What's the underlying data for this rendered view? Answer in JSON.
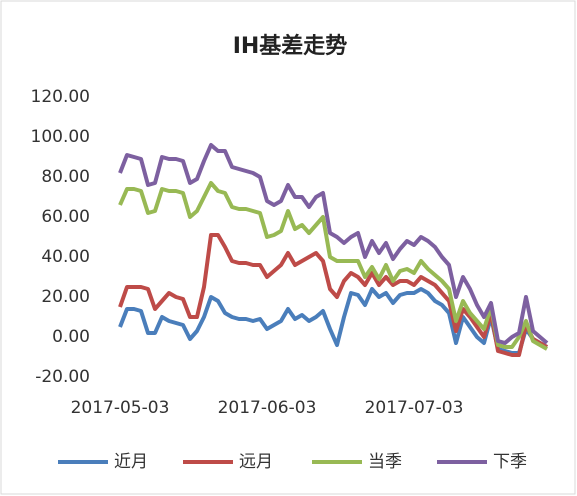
{
  "chart_data": {
    "type": "line",
    "title": "IH基差走势",
    "categories": [
      "2017-05-03",
      null,
      null,
      null,
      null,
      null,
      null,
      null,
      null,
      null,
      null,
      null,
      null,
      null,
      null,
      null,
      null,
      null,
      null,
      null,
      null,
      "2017-06-03",
      null,
      null,
      null,
      null,
      null,
      null,
      null,
      null,
      null,
      null,
      null,
      null,
      null,
      null,
      null,
      null,
      null,
      null,
      null,
      null,
      "2017-07-03",
      null,
      null,
      null,
      null,
      null,
      null,
      null,
      null,
      null,
      null,
      null,
      null,
      null,
      null,
      null,
      null,
      null,
      null,
      null
    ],
    "series": [
      {
        "name": "近月",
        "color": "#4a7ebb",
        "values": [
          5,
          14,
          14,
          13,
          2,
          2,
          10,
          8,
          7,
          6,
          -1,
          3,
          10,
          20,
          18,
          12,
          10,
          9,
          9,
          8,
          9,
          4,
          6,
          8,
          14,
          9,
          11,
          8,
          10,
          13,
          4,
          -4,
          10,
          22,
          21,
          16,
          24,
          20,
          22,
          17,
          21,
          22,
          22,
          24,
          22,
          18,
          16,
          12,
          -3,
          10,
          5,
          0,
          -3,
          10,
          -6,
          -7,
          -8,
          -8,
          4,
          -1,
          -3,
          -5
        ]
      },
      {
        "name": "远月",
        "color": "#be4b48",
        "values": [
          15,
          25,
          25,
          25,
          24,
          14,
          18,
          22,
          20,
          19,
          10,
          10,
          25,
          51,
          51,
          45,
          38,
          37,
          37,
          36,
          36,
          30,
          33,
          36,
          42,
          36,
          38,
          40,
          42,
          38,
          24,
          20,
          28,
          32,
          30,
          26,
          32,
          26,
          30,
          26,
          28,
          28,
          26,
          30,
          28,
          26,
          22,
          18,
          3,
          14,
          10,
          5,
          0,
          12,
          -7,
          -8,
          -9,
          -9,
          6,
          -1,
          -3,
          -5
        ]
      },
      {
        "name": "当季",
        "color": "#98b954",
        "values": [
          66,
          74,
          74,
          73,
          62,
          63,
          74,
          73,
          73,
          72,
          60,
          63,
          70,
          77,
          73,
          72,
          65,
          64,
          64,
          63,
          62,
          50,
          51,
          53,
          63,
          54,
          56,
          52,
          56,
          60,
          40,
          38,
          38,
          38,
          38,
          30,
          35,
          29,
          36,
          28,
          33,
          34,
          32,
          38,
          34,
          31,
          28,
          24,
          8,
          18,
          12,
          8,
          4,
          15,
          -4,
          -5,
          -5,
          0,
          8,
          -2,
          -4,
          -6
        ]
      },
      {
        "name": "下季",
        "color": "#7d60a0",
        "values": [
          82,
          91,
          90,
          89,
          76,
          77,
          90,
          89,
          89,
          88,
          77,
          79,
          88,
          96,
          93,
          93,
          85,
          84,
          83,
          82,
          80,
          68,
          66,
          68,
          76,
          70,
          70,
          65,
          70,
          72,
          52,
          50,
          47,
          50,
          52,
          40,
          48,
          42,
          47,
          39,
          44,
          48,
          46,
          50,
          48,
          45,
          40,
          36,
          20,
          30,
          24,
          16,
          10,
          17,
          -2,
          -3,
          0,
          2,
          20,
          3,
          0,
          -3
        ]
      }
    ],
    "ylim": [
      -20,
      120
    ],
    "yticks": [
      {
        "value": -20,
        "label": "-20.00"
      },
      {
        "value": 0,
        "label": "0.00"
      },
      {
        "value": 20,
        "label": "20.00"
      },
      {
        "value": 40,
        "label": "40.00"
      },
      {
        "value": 60,
        "label": "60.00"
      },
      {
        "value": 80,
        "label": "80.00"
      },
      {
        "value": 100,
        "label": "100.00"
      },
      {
        "value": 120,
        "label": "120.00"
      }
    ]
  }
}
